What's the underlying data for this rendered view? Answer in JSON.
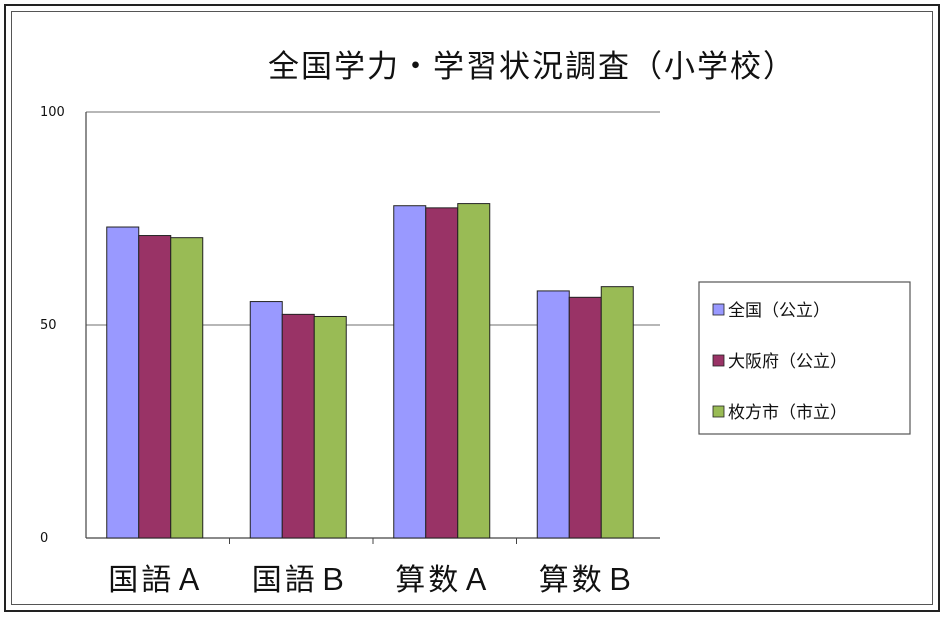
{
  "chart_data": {
    "type": "bar",
    "title": "全国学力・学習状況調査（小学校）",
    "xlabel": "",
    "ylabel": "",
    "ylim": [
      0,
      100
    ],
    "yticks": [
      0,
      50,
      100
    ],
    "categories": [
      "国語Ａ",
      "国語Ｂ",
      "算数Ａ",
      "算数Ｂ"
    ],
    "series": [
      {
        "name": "全国（公立）",
        "color": "#9999ff",
        "values": [
          73,
          55.5,
          78,
          58
        ]
      },
      {
        "name": "大阪府（公立）",
        "color": "#993366",
        "values": [
          71,
          52.5,
          77.5,
          56.5
        ]
      },
      {
        "name": "枚方市（市立）",
        "color": "#99bb55",
        "values": [
          70.5,
          52,
          78.5,
          59
        ]
      }
    ],
    "grid": true,
    "legend": "right"
  }
}
